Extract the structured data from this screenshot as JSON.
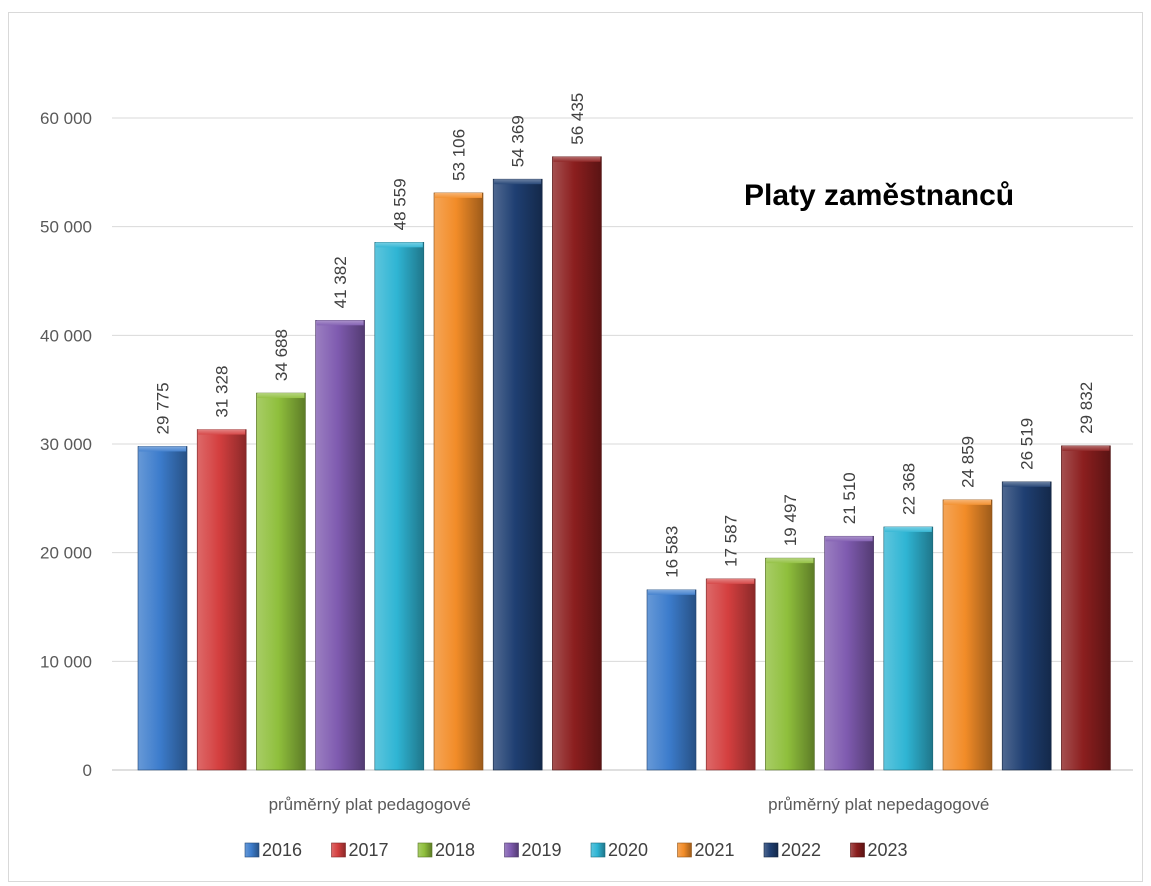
{
  "chart_data": {
    "type": "bar",
    "title": "Platy zaměstnanců",
    "xlabel": "",
    "ylabel": "",
    "ylim": [
      0,
      60000
    ],
    "yticks": [
      0,
      10000,
      20000,
      30000,
      40000,
      50000,
      60000
    ],
    "ytick_labels": [
      "0",
      "10 000",
      "20 000",
      "30 000",
      "40 000",
      "50 000",
      "60 000"
    ],
    "grid": true,
    "legend_position": "bottom",
    "categories": [
      "průměrný plat pedagogové",
      "průměrný plat nepedagogové"
    ],
    "series": [
      {
        "name": "2016",
        "color": "#3c7ccc",
        "values": [
          29775,
          16583
        ],
        "labels": [
          "29 775",
          "16 583"
        ]
      },
      {
        "name": "2017",
        "color": "#d43f3f",
        "values": [
          31328,
          17587
        ],
        "labels": [
          "31 328",
          "17 587"
        ]
      },
      {
        "name": "2018",
        "color": "#8fbf3c",
        "values": [
          34688,
          19497
        ],
        "labels": [
          "34 688",
          "19 497"
        ]
      },
      {
        "name": "2019",
        "color": "#7f5bb0",
        "values": [
          41382,
          21510
        ],
        "labels": [
          "41 382",
          "21 510"
        ]
      },
      {
        "name": "2020",
        "color": "#2fb5d4",
        "values": [
          48559,
          22368
        ],
        "labels": [
          "48 559",
          "22 368"
        ]
      },
      {
        "name": "2021",
        "color": "#f28c28",
        "values": [
          53106,
          24859
        ],
        "labels": [
          "53 106",
          "24 859"
        ]
      },
      {
        "name": "2022",
        "color": "#1f3f72",
        "values": [
          54369,
          26519
        ],
        "labels": [
          "54 369",
          "26 519"
        ]
      },
      {
        "name": "2023",
        "color": "#8b1e1e",
        "values": [
          56435,
          29832
        ],
        "labels": [
          "56 435",
          "29 832"
        ]
      }
    ]
  }
}
